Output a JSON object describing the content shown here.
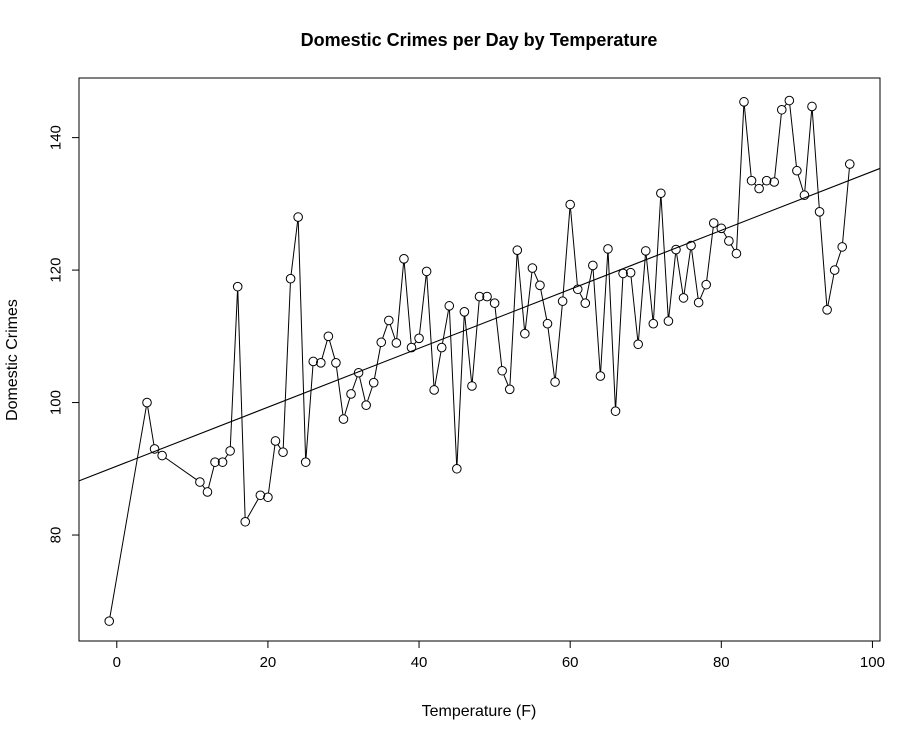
{
  "chart_data": {
    "type": "scatter",
    "title": "Domestic Crimes per Day by Temperature",
    "xlabel": "Temperature (F)",
    "ylabel": "Domestic Crimes",
    "xlim": [
      -5,
      101
    ],
    "ylim": [
      64,
      149
    ],
    "x_ticks": [
      0,
      20,
      40,
      60,
      80,
      100
    ],
    "y_ticks": [
      80,
      100,
      120,
      140
    ],
    "grid": false,
    "legend": "none",
    "markers": "open-circle",
    "connect_points": true,
    "series": [
      {
        "x": [
          -1,
          4,
          5,
          6,
          11,
          12,
          13,
          14,
          15,
          16,
          17,
          19,
          20,
          21,
          22,
          23,
          24,
          25,
          26,
          27,
          28,
          29,
          30,
          31,
          32,
          33,
          34,
          35,
          36,
          37,
          38,
          39,
          40,
          41,
          42,
          43,
          44,
          45,
          46,
          47,
          48,
          49,
          50,
          51,
          52,
          53,
          54,
          55,
          56,
          57,
          58,
          59,
          60,
          61,
          62,
          63,
          64,
          65,
          66,
          67,
          68,
          69,
          70,
          71,
          72,
          73,
          74,
          75,
          76,
          77,
          78,
          79,
          80,
          81,
          82,
          83,
          84,
          85,
          86,
          87,
          88,
          89,
          90,
          91,
          92,
          93,
          94,
          95,
          96,
          97
        ],
        "y": [
          67,
          100,
          93,
          92,
          88,
          86.5,
          91,
          91,
          92.7,
          117.5,
          82,
          86,
          85.7,
          94.2,
          92.5,
          118.7,
          128,
          91,
          106.2,
          106,
          110,
          106,
          97.5,
          101.3,
          104.5,
          99.6,
          103,
          109.1,
          112.4,
          109,
          121.7,
          108.3,
          109.7,
          119.8,
          101.9,
          108.3,
          114.6,
          90,
          113.7,
          102.5,
          116,
          116,
          115,
          104.8,
          102,
          123,
          110.4,
          120.3,
          117.7,
          111.9,
          103.1,
          115.3,
          129.9,
          117.1,
          115,
          120.7,
          104,
          123.2,
          98.7,
          119.5,
          119.6,
          108.8,
          122.9,
          111.9,
          131.6,
          112.3,
          123.1,
          115.8,
          123.7,
          115.1,
          117.8,
          127.1,
          126.3,
          124.4,
          122.5,
          145.4,
          133.5,
          132.3,
          133.5,
          133.3,
          144.2,
          145.6,
          135,
          131.3,
          144.7,
          128.8,
          114,
          120,
          123.5,
          136
        ]
      }
    ],
    "regression_line": {
      "intercept": 90.4,
      "slope": 0.445
    }
  }
}
